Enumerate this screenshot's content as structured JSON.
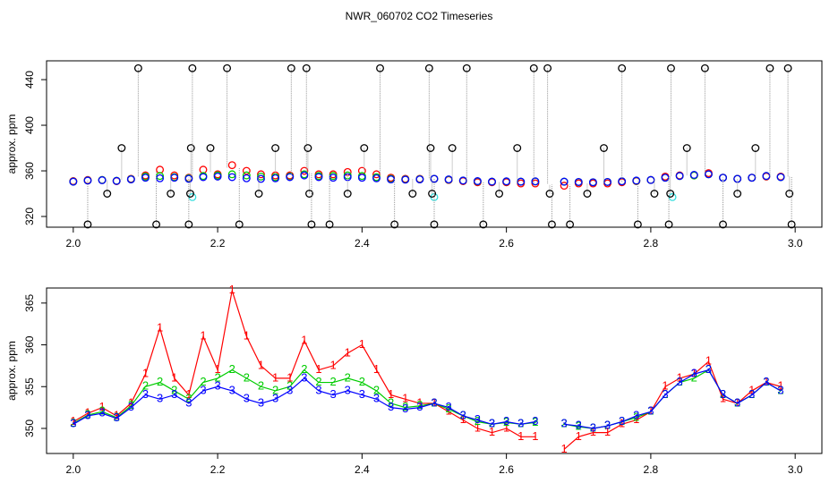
{
  "title": "NWR_060702  CO2 Timeseries",
  "chart_data": [
    {
      "type": "scatter",
      "ylabel": "approx. ppm",
      "xlim": [
        1.963,
        3.037
      ],
      "ylim": [
        310.6,
        456.5
      ],
      "xticks": [
        {
          "value": 2,
          "label": "2.0"
        },
        2.2,
        2.4,
        2.6,
        2.8,
        {
          "value": 3,
          "label": "3.0"
        }
      ],
      "yticks": [
        320,
        360,
        400,
        440
      ],
      "series": [
        {
          "color": "#ff0000",
          "x": [
            2.0,
            2.02,
            2.04,
            2.06,
            2.08,
            2.1,
            2.12,
            2.14,
            2.16,
            2.18,
            2.2,
            2.22,
            2.24,
            2.26,
            2.28,
            2.3,
            2.32,
            2.34,
            2.36,
            2.38,
            2.4,
            2.42,
            2.44,
            2.46,
            2.48,
            2.5,
            2.52,
            2.54,
            2.56,
            2.58,
            2.6,
            2.62,
            2.64,
            2.68,
            2.7,
            2.72,
            2.74,
            2.76,
            2.78,
            2.8,
            2.82,
            2.84,
            2.86,
            2.88,
            2.9,
            2.92,
            2.94,
            2.96,
            2.98
          ],
          "values": [
            351,
            352,
            352,
            351,
            353,
            356,
            361,
            356,
            354,
            361,
            357,
            365,
            360,
            357,
            356,
            356,
            360,
            357,
            357,
            359,
            360,
            357,
            354,
            353,
            353,
            353,
            352,
            351,
            350,
            350,
            350,
            349,
            349,
            347,
            349,
            349,
            349,
            350,
            351,
            352,
            355,
            356,
            356,
            358,
            354,
            353,
            354,
            355,
            355
          ]
        },
        {
          "color": "#00cc00",
          "x": [
            2.0,
            2.02,
            2.04,
            2.06,
            2.08,
            2.1,
            2.12,
            2.14,
            2.16,
            2.18,
            2.2,
            2.22,
            2.24,
            2.26,
            2.28,
            2.3,
            2.32,
            2.34,
            2.36,
            2.38,
            2.4,
            2.42,
            2.44,
            2.46,
            2.48,
            2.5,
            2.52,
            2.54,
            2.56,
            2.58,
            2.6,
            2.62,
            2.64,
            2.68,
            2.7,
            2.72,
            2.74,
            2.76,
            2.78,
            2.8,
            2.82,
            2.84,
            2.86,
            2.88,
            2.9,
            2.92,
            2.94,
            2.96,
            2.98
          ],
          "values": [
            350.6,
            351.6,
            352,
            351.3,
            352.7,
            355,
            355.5,
            354.5,
            353.5,
            355.5,
            356,
            357,
            356,
            355,
            354.5,
            355,
            357,
            355.5,
            355.5,
            356,
            355.5,
            354.5,
            353,
            352.5,
            352.7,
            353,
            352.3,
            351.5,
            350.8,
            350.5,
            350.7,
            350.5,
            350.7,
            350.5,
            350.2,
            350,
            350.3,
            350.8,
            351.3,
            352,
            354,
            355.5,
            356,
            357,
            354,
            353,
            354,
            355.5,
            354.5
          ]
        },
        {
          "color": "#0000ff",
          "x": [
            2.0,
            2.02,
            2.04,
            2.06,
            2.08,
            2.1,
            2.12,
            2.14,
            2.16,
            2.18,
            2.2,
            2.22,
            2.24,
            2.26,
            2.28,
            2.3,
            2.32,
            2.34,
            2.36,
            2.38,
            2.4,
            2.42,
            2.44,
            2.46,
            2.48,
            2.5,
            2.52,
            2.54,
            2.56,
            2.58,
            2.6,
            2.62,
            2.64,
            2.68,
            2.7,
            2.72,
            2.74,
            2.76,
            2.78,
            2.8,
            2.82,
            2.84,
            2.86,
            2.88,
            2.9,
            2.92,
            2.94,
            2.96,
            2.98
          ],
          "values": [
            350.5,
            351.5,
            351.8,
            351.2,
            352.5,
            354,
            353.5,
            354,
            353,
            354.5,
            355,
            354.5,
            353.5,
            353,
            353.5,
            354.5,
            356,
            354.5,
            354,
            354.5,
            354,
            353.5,
            352.5,
            352.3,
            352.5,
            353,
            352.5,
            351.5,
            351,
            350.5,
            350.8,
            350.5,
            350.8,
            350.5,
            350.3,
            350,
            350.3,
            350.8,
            351.5,
            352,
            354,
            355.5,
            356.5,
            357,
            354,
            353,
            354,
            355.5,
            354.5
          ]
        },
        {
          "color": "#33dddd",
          "x": [
            2.165,
            2.5,
            2.83
          ],
          "values": [
            337,
            337,
            337
          ]
        },
        {
          "color": "#000000",
          "droplines": true,
          "x": [
            2.02,
            2.047,
            2.067,
            2.09,
            2.115,
            2.135,
            2.16,
            2.162,
            2.163,
            2.165,
            2.19,
            2.213,
            2.23,
            2.257,
            2.28,
            2.302,
            2.323,
            2.325,
            2.327,
            2.33,
            2.355,
            2.38,
            2.403,
            2.425,
            2.445,
            2.47,
            2.493,
            2.495,
            2.497,
            2.5,
            2.525,
            2.545,
            2.568,
            2.59,
            2.615,
            2.638,
            2.657,
            2.66,
            2.663,
            2.688,
            2.712,
            2.735,
            2.76,
            2.782,
            2.805,
            2.825,
            2.827,
            2.828,
            2.85,
            2.875,
            2.9,
            2.92,
            2.945,
            2.965,
            2.99,
            2.992,
            2.995
          ],
          "values": [
            313,
            340,
            380,
            450,
            313,
            340,
            313,
            340,
            380,
            450,
            380,
            450,
            313,
            340,
            380,
            450,
            450,
            380,
            340,
            313,
            313,
            340,
            380,
            450,
            313,
            340,
            450,
            380,
            340,
            313,
            380,
            450,
            313,
            340,
            380,
            450,
            450,
            340,
            313,
            313,
            340,
            380,
            450,
            313,
            340,
            313,
            340,
            450,
            380,
            450,
            313,
            340,
            380,
            450,
            450,
            340,
            313
          ]
        }
      ]
    },
    {
      "type": "line",
      "ylabel": "approx. ppm",
      "xlim": [
        1.963,
        3.037
      ],
      "ylim": [
        347.0,
        366.8
      ],
      "xticks": [
        {
          "value": 2,
          "label": "2.0"
        },
        2.2,
        2.4,
        2.6,
        2.8,
        {
          "value": 3,
          "label": "3.0"
        }
      ],
      "yticks": [
        350,
        355,
        360,
        365
      ],
      "series": [
        {
          "name": "1",
          "color": "#ff0000",
          "x": [
            2.0,
            2.02,
            2.04,
            2.06,
            2.08,
            2.1,
            2.12,
            2.14,
            2.16,
            2.18,
            2.2,
            2.22,
            2.24,
            2.26,
            2.28,
            2.3,
            2.32,
            2.34,
            2.36,
            2.38,
            2.4,
            2.42,
            2.44,
            2.46,
            2.48,
            2.5,
            2.52,
            2.54,
            2.56,
            2.58,
            2.6,
            2.62,
            2.64,
            2.66,
            2.68,
            2.7,
            2.72,
            2.74,
            2.76,
            2.78,
            2.8,
            2.82,
            2.84,
            2.86,
            2.88,
            2.9,
            2.92,
            2.94,
            2.96,
            2.98
          ],
          "values": [
            350.8,
            351.8,
            352.5,
            351.5,
            353,
            356.5,
            362,
            356,
            354,
            361,
            357,
            366.5,
            361,
            357.5,
            356,
            356,
            360.5,
            357,
            357.5,
            359,
            360,
            357,
            354,
            353.5,
            353,
            353,
            352,
            351,
            350,
            349.5,
            350,
            349,
            349,
            null,
            347.5,
            349,
            349.5,
            349.5,
            350.5,
            351,
            352,
            355,
            356,
            356.5,
            358,
            353.5,
            353,
            354.5,
            355.5,
            355
          ]
        },
        {
          "name": "2",
          "color": "#00cc00",
          "x": [
            2.0,
            2.02,
            2.04,
            2.06,
            2.08,
            2.1,
            2.12,
            2.14,
            2.16,
            2.18,
            2.2,
            2.22,
            2.24,
            2.26,
            2.28,
            2.3,
            2.32,
            2.34,
            2.36,
            2.38,
            2.4,
            2.42,
            2.44,
            2.46,
            2.48,
            2.5,
            2.52,
            2.54,
            2.56,
            2.58,
            2.6,
            2.62,
            2.64,
            2.66,
            2.68,
            2.7,
            2.72,
            2.74,
            2.76,
            2.78,
            2.8,
            2.82,
            2.84,
            2.86,
            2.88,
            2.9,
            2.92,
            2.94,
            2.96,
            2.98
          ],
          "values": [
            350.6,
            351.6,
            352,
            351.3,
            352.7,
            355,
            355.5,
            354.5,
            353.5,
            355.5,
            356,
            357,
            356,
            355,
            354.5,
            355,
            357,
            355.5,
            355.5,
            356,
            355.5,
            354.5,
            353,
            352.5,
            352.7,
            353,
            352.3,
            351.5,
            350.8,
            350.5,
            350.7,
            350.5,
            350.7,
            null,
            350.5,
            350.2,
            350,
            350.3,
            350.8,
            351.3,
            352,
            354,
            355.5,
            356,
            357,
            354,
            353,
            354,
            355.5,
            354.5
          ]
        },
        {
          "name": "3",
          "color": "#0000ff",
          "x": [
            2.0,
            2.02,
            2.04,
            2.06,
            2.08,
            2.1,
            2.12,
            2.14,
            2.16,
            2.18,
            2.2,
            2.22,
            2.24,
            2.26,
            2.28,
            2.3,
            2.32,
            2.34,
            2.36,
            2.38,
            2.4,
            2.42,
            2.44,
            2.46,
            2.48,
            2.5,
            2.52,
            2.54,
            2.56,
            2.58,
            2.6,
            2.62,
            2.64,
            2.66,
            2.68,
            2.7,
            2.72,
            2.74,
            2.76,
            2.78,
            2.8,
            2.82,
            2.84,
            2.86,
            2.88,
            2.9,
            2.92,
            2.94,
            2.96,
            2.98
          ],
          "values": [
            350.5,
            351.5,
            351.8,
            351.2,
            352.5,
            354,
            353.5,
            354,
            353,
            354.5,
            355,
            354.5,
            353.5,
            353,
            353.5,
            354.5,
            356,
            354.5,
            354,
            354.5,
            354,
            353.5,
            352.5,
            352.3,
            352.5,
            353,
            352.5,
            351.5,
            351,
            350.5,
            350.8,
            350.5,
            350.8,
            null,
            350.5,
            350.3,
            350,
            350.3,
            350.8,
            351.5,
            352,
            354,
            355.5,
            356.5,
            357,
            354,
            353,
            354,
            355.5,
            354.5
          ]
        }
      ]
    }
  ]
}
